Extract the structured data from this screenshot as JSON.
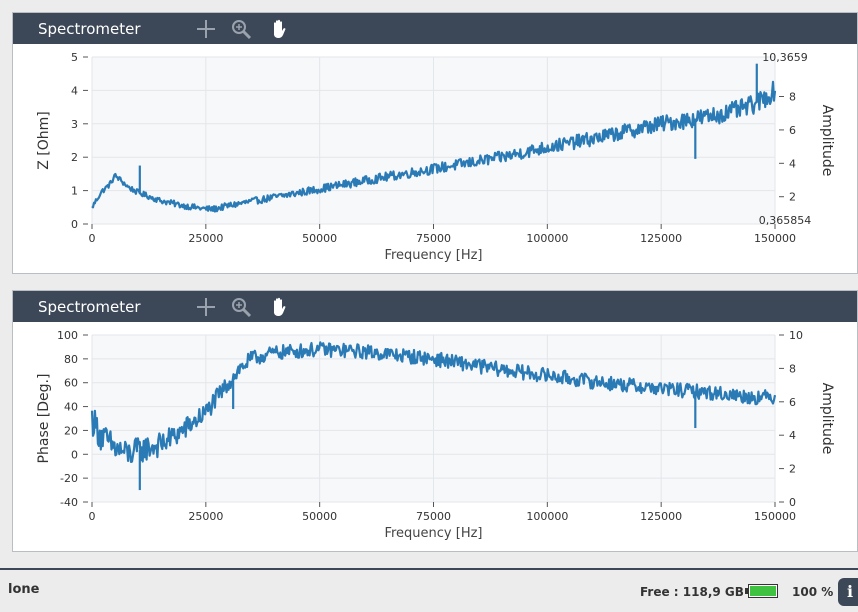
{
  "panels": [
    {
      "title": "Spectrometer"
    },
    {
      "title": "Spectrometer"
    }
  ],
  "icons": [
    "crosshair-icon",
    "zoom-icon",
    "pan-hand-icon"
  ],
  "colors": {
    "series": "#2a7ab5",
    "header": "#3c4858",
    "grid": "#e3e6ea",
    "battery": "#3fc23f"
  },
  "status": {
    "text": "lone",
    "free_label": "Free : 118,9 GB",
    "battery_pct_label": "100 %",
    "battery_level": 1.0,
    "info_label": "i"
  },
  "chart_data": [
    {
      "type": "line",
      "xlabel": "Frequency [Hz]",
      "ylabel": "Z [Ohm]",
      "y2label": "Amplitude",
      "xlim": [
        0,
        150000
      ],
      "ylim": [
        0,
        5
      ],
      "y2lim": [
        0.365854,
        10.3659
      ],
      "xticks": [
        0,
        25000,
        50000,
        75000,
        100000,
        125000,
        150000
      ],
      "xtick_labels": [
        "0",
        "25000",
        "50000",
        "75000",
        "100000",
        "125000",
        "150000"
      ],
      "yticks": [
        0,
        1,
        2,
        3,
        4,
        5
      ],
      "ytick_labels": [
        "0",
        "1",
        "2",
        "3",
        "4",
        "5"
      ],
      "y2ticks": [
        2,
        4,
        6,
        8
      ],
      "y2tick_labels": [
        "2",
        "4",
        "6",
        "8"
      ],
      "y2_max_label": "10,3659",
      "y2_min_label": "0,365854",
      "grid": true,
      "series": [
        {
          "x": [
            0,
            2000,
            4000,
            5000,
            6000,
            8000,
            10000,
            12000,
            15000,
            20000,
            25000,
            27000,
            30000,
            40000,
            50000,
            60000,
            75000,
            90000,
            100000,
            110000,
            120000,
            125000,
            130000,
            132000,
            135000,
            140000,
            145000,
            148000,
            150000
          ],
          "y": [
            0.5,
            0.95,
            1.2,
            1.45,
            1.35,
            1.1,
            0.95,
            0.85,
            0.7,
            0.55,
            0.45,
            0.45,
            0.55,
            0.8,
            1.05,
            1.3,
            1.65,
            2.0,
            2.3,
            2.55,
            2.85,
            3.0,
            3.1,
            3.15,
            3.2,
            3.35,
            3.55,
            3.8,
            4.0
          ],
          "noise": [
            0.08,
            0.3
          ]
        }
      ],
      "spikes": [
        {
          "x": 10500,
          "y": 1.75
        },
        {
          "x": 132500,
          "y": 1.95
        },
        {
          "x": 146000,
          "y": 4.8
        }
      ]
    },
    {
      "type": "line",
      "xlabel": "Frequency [Hz]",
      "ylabel": "Phase [Deg.]",
      "y2label": "Amplitude",
      "xlim": [
        0,
        150000
      ],
      "ylim": [
        -40,
        100
      ],
      "y2lim": [
        0,
        10
      ],
      "xticks": [
        0,
        25000,
        50000,
        75000,
        100000,
        125000,
        150000
      ],
      "xtick_labels": [
        "0",
        "25000",
        "50000",
        "75000",
        "100000",
        "125000",
        "150000"
      ],
      "yticks": [
        -40,
        -20,
        0,
        20,
        40,
        60,
        80,
        100
      ],
      "ytick_labels": [
        "-40",
        "-20",
        "0",
        "20",
        "40",
        "60",
        "80",
        "100"
      ],
      "y2ticks": [
        0,
        2,
        4,
        6,
        8,
        10
      ],
      "y2tick_labels": [
        "0",
        "2",
        "4",
        "6",
        "8",
        "10"
      ],
      "grid": true,
      "series": [
        {
          "x": [
            0,
            2000,
            5000,
            8000,
            10000,
            15000,
            20000,
            25000,
            28000,
            32000,
            35000,
            40000,
            50000,
            55000,
            60000,
            75000,
            90000,
            100000,
            110000,
            125000,
            135000,
            145000,
            150000
          ],
          "y": [
            30,
            15,
            5,
            0,
            3,
            8,
            20,
            35,
            50,
            70,
            80,
            85,
            88,
            87,
            86,
            80,
            71,
            66,
            61,
            55,
            52,
            48,
            48
          ],
          "noise": [
            5,
            12
          ]
        }
      ],
      "spikes": [
        {
          "x": 10500,
          "y": -30
        },
        {
          "x": 31000,
          "y": 38
        },
        {
          "x": 132500,
          "y": 22
        }
      ]
    }
  ]
}
